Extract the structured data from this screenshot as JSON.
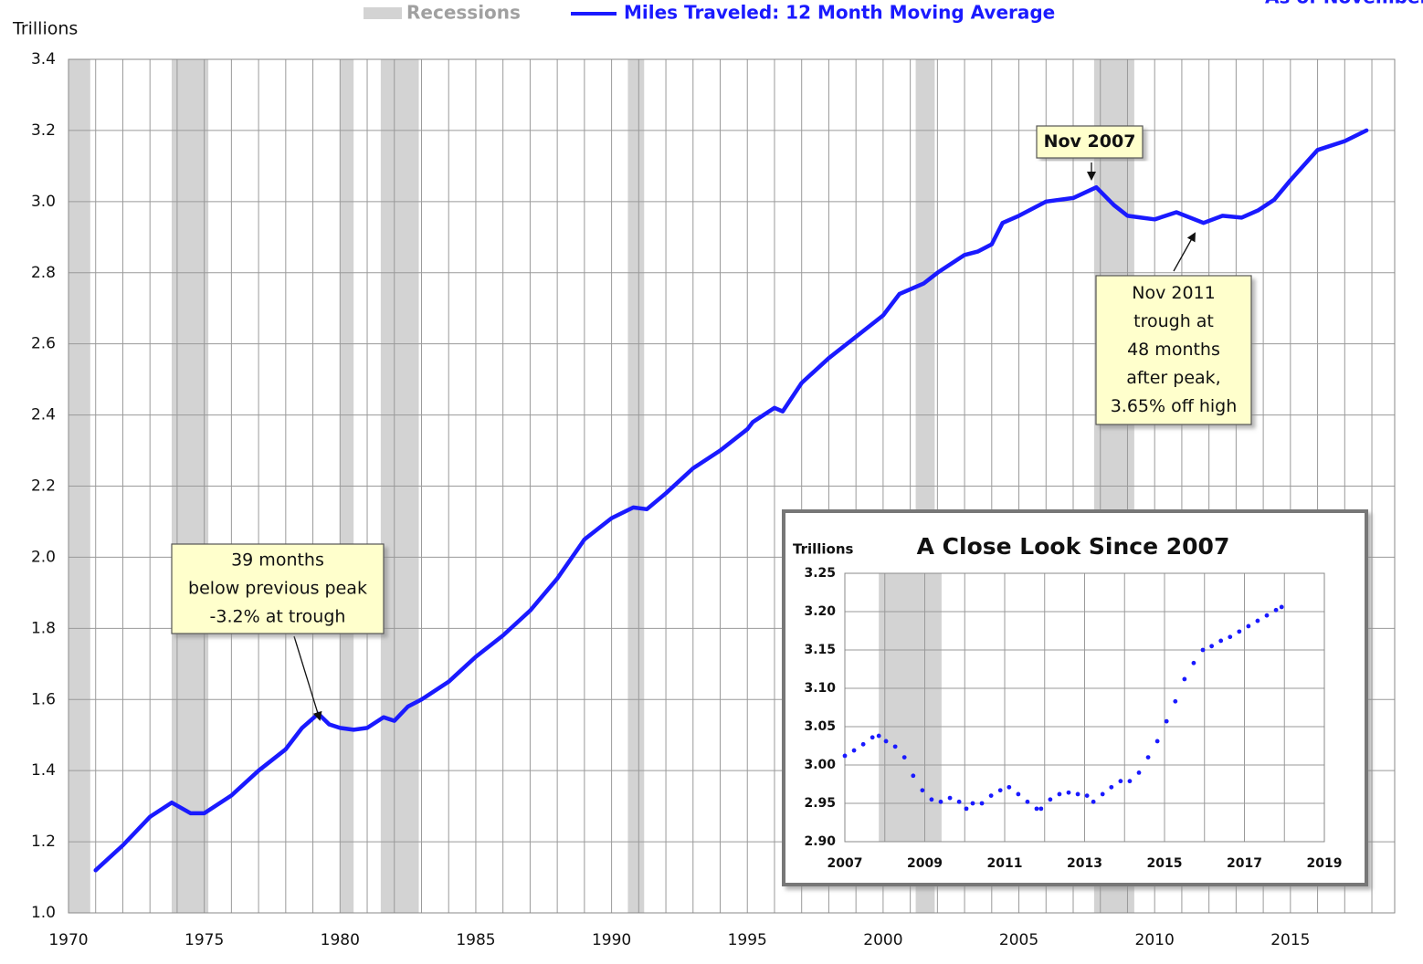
{
  "chart_data": [
    {
      "type": "line",
      "y_label": "Trillions",
      "note": "As of November",
      "xlim": [
        1970,
        2018.84
      ],
      "ylim": [
        1.0,
        3.4
      ],
      "xticks": [
        1970,
        1975,
        1980,
        1985,
        1990,
        1995,
        2000,
        2005,
        2010,
        2015
      ],
      "xgrid": [
        1970,
        1971,
        1972,
        1973,
        1974,
        1975,
        1976,
        1977,
        1978,
        1979,
        1980,
        1981,
        1982,
        1983,
        1984,
        1985,
        1986,
        1987,
        1988,
        1989,
        1990,
        1991,
        1992,
        1993,
        1994,
        1995,
        1996,
        1997,
        1998,
        1999,
        2000,
        2001,
        2002,
        2003,
        2004,
        2005,
        2006,
        2007,
        2008,
        2009,
        2010,
        2011,
        2012,
        2013,
        2014,
        2015,
        2016,
        2017,
        2018
      ],
      "yticks": [
        {
          "value": 1.0,
          "label": "1.0"
        },
        1.2,
        1.4,
        1.6,
        1.8,
        {
          "value": 2.0,
          "label": "2.0"
        },
        2.2,
        2.4,
        2.6,
        2.8,
        {
          "value": 3.0,
          "label": "3.0"
        },
        3.2,
        3.4
      ],
      "grid": true,
      "recessions": {
        "name": "Recessions",
        "color": "#d3d3d3",
        "periods": [
          [
            1970.0,
            1970.8
          ],
          [
            1973.8,
            1975.15
          ],
          [
            1980.0,
            1980.5
          ],
          [
            1981.5,
            1982.9
          ],
          [
            1990.6,
            1991.2
          ],
          [
            2001.2,
            2001.9
          ],
          [
            2007.77,
            2009.25
          ]
        ]
      },
      "x": [
        1971.0,
        1972,
        1973,
        1973.8,
        1974.5,
        1975.0,
        1976,
        1977,
        1978,
        1978.6,
        1979.2,
        1979.6,
        1980.0,
        1980.5,
        1981.0,
        1981.6,
        1982.0,
        1982.5,
        1983,
        1984,
        1985,
        1986,
        1987,
        1988,
        1989,
        1990,
        1990.8,
        1991.3,
        1992,
        1993,
        1994,
        1995,
        1995.2,
        1996,
        1996.3,
        1997,
        1998,
        1999,
        2000,
        2000.6,
        2001.5,
        2002,
        2003,
        2003.5,
        2004,
        2004.4,
        2005,
        2006,
        2007,
        2007.85,
        2008.5,
        2009,
        2009.5,
        2010,
        2010.8,
        2011.8,
        2012.5,
        2013.2,
        2013.8,
        2014.4,
        2015,
        2016,
        2017,
        2017.8
      ],
      "series": [
        {
          "name": "Miles Traveled: 12 Month Moving Average",
          "color": "#1a1aff",
          "values": [
            1.12,
            1.19,
            1.27,
            1.31,
            1.28,
            1.28,
            1.33,
            1.4,
            1.46,
            1.52,
            1.56,
            1.53,
            1.52,
            1.515,
            1.52,
            1.55,
            1.54,
            1.58,
            1.6,
            1.65,
            1.72,
            1.78,
            1.85,
            1.94,
            2.05,
            2.11,
            2.14,
            2.135,
            2.18,
            2.25,
            2.3,
            2.36,
            2.38,
            2.42,
            2.41,
            2.49,
            2.56,
            2.62,
            2.68,
            2.74,
            2.77,
            2.8,
            2.85,
            2.86,
            2.88,
            2.94,
            2.96,
            3.0,
            3.01,
            3.04,
            2.99,
            2.96,
            2.955,
            2.95,
            2.97,
            2.94,
            2.96,
            2.955,
            2.975,
            3.005,
            3.06,
            3.145,
            3.17,
            3.2
          ]
        }
      ],
      "annotations": [
        {
          "text": [
            "Nov 2007"
          ]
        },
        {
          "text": [
            "Nov 2011",
            "trough at",
            "48 months",
            "after peak,",
            "3.65% off high"
          ]
        },
        {
          "text": [
            "39 months",
            "below previous peak",
            "-3.2% at trough"
          ]
        }
      ]
    },
    {
      "type": "scatter",
      "title": "A Close Look Since 2007",
      "y_label": "Trillions",
      "xlim": [
        2007,
        2019
      ],
      "ylim": [
        2.9,
        3.25
      ],
      "xticks": [
        2007,
        2009,
        2011,
        2013,
        2015,
        2017,
        2019
      ],
      "xgrid": [
        2007,
        2008,
        2009,
        2010,
        2011,
        2012,
        2013,
        2014,
        2015,
        2016,
        2017,
        2018,
        2019
      ],
      "yticks": [
        {
          "value": 2.9,
          "label": "2.90"
        },
        2.95,
        {
          "value": 3.0,
          "label": "3.00"
        },
        3.05,
        {
          "value": 3.1,
          "label": "3.10"
        },
        3.15,
        {
          "value": 3.2,
          "label": "3.20"
        },
        3.25
      ],
      "grid": true,
      "recessions": {
        "color": "#d3d3d3",
        "periods": [
          [
            2007.85,
            2009.42
          ]
        ]
      },
      "x": [
        2007.0,
        2007.23,
        2007.46,
        2007.69,
        2007.85,
        2008.03,
        2008.26,
        2008.49,
        2008.71,
        2008.94,
        2009.17,
        2009.4,
        2009.63,
        2009.86,
        2010.04,
        2010.2,
        2010.43,
        2010.66,
        2010.89,
        2011.11,
        2011.34,
        2011.57,
        2011.8,
        2011.91,
        2012.14,
        2012.37,
        2012.6,
        2012.83,
        2013.06,
        2013.22,
        2013.45,
        2013.67,
        2013.9,
        2014.13,
        2014.36,
        2014.59,
        2014.82,
        2015.05,
        2015.27,
        2015.5,
        2015.73,
        2015.96,
        2016.18,
        2016.41,
        2016.64,
        2016.87,
        2017.1,
        2017.33,
        2017.56,
        2017.79,
        2017.93
      ],
      "series": [
        {
          "color": "#1a1aff",
          "values": [
            3.012,
            3.019,
            3.027,
            3.036,
            3.038,
            3.031,
            3.024,
            3.01,
            2.986,
            2.967,
            2.955,
            2.952,
            2.957,
            2.952,
            2.943,
            2.95,
            2.95,
            2.96,
            2.967,
            2.971,
            2.962,
            2.952,
            2.943,
            2.943,
            2.955,
            2.962,
            2.964,
            2.962,
            2.96,
            2.952,
            2.962,
            2.971,
            2.979,
            2.979,
            2.99,
            3.01,
            3.031,
            3.057,
            3.083,
            3.112,
            3.133,
            3.15,
            3.155,
            3.162,
            3.167,
            3.174,
            3.181,
            3.188,
            3.195,
            3.202,
            3.206
          ]
        }
      ]
    }
  ]
}
